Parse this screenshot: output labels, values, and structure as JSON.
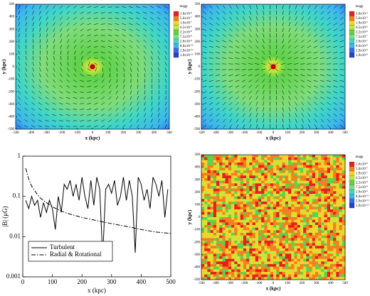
{
  "chart_data": [
    {
      "type": "heatmap",
      "mode": "rotational",
      "title": "magp",
      "xlabel": "x (kpc)",
      "ylabel": "y (kpc)",
      "xlim": [
        -500,
        500
      ],
      "ylim": [
        -500,
        500
      ],
      "xticks": [
        -500,
        -400,
        -300,
        -200,
        -100,
        0,
        100,
        200,
        300,
        400,
        500
      ],
      "yticks": [
        -500,
        -400,
        -300,
        -200,
        -100,
        0,
        100,
        200,
        300,
        400,
        500
      ],
      "colorbar_colors": [
        "#e8201a",
        "#f57f1f",
        "#f5d32a",
        "#c5e83c",
        "#5fd24a",
        "#7ddf7a",
        "#3fd6c8",
        "#3cb6ee",
        "#2f6fe6",
        "#2a3fc8"
      ],
      "colorbar_labels": [
        {
          "base": "1.6x10",
          "exp": "-6"
        },
        {
          "base": "5.6x10",
          "exp": "-7"
        },
        {
          "base": "1.9x10",
          "exp": "-7"
        },
        {
          "base": "6.5x10",
          "exp": "-8"
        },
        {
          "base": "2.2x10",
          "exp": "-8"
        },
        {
          "base": "7.5x10",
          "exp": "-9"
        },
        {
          "base": "2.6x10",
          "exp": "-9"
        },
        {
          "base": "8.6x10",
          "exp": "-10"
        },
        {
          "base": "2.9x10",
          "exp": "-10"
        },
        {
          "base": "1.0x10",
          "exp": "-10"
        }
      ]
    },
    {
      "type": "heatmap",
      "mode": "radial",
      "title": "magp",
      "xlabel": "x (kpc)",
      "ylabel": "y (kpc)",
      "xlim": [
        -500,
        500
      ],
      "ylim": [
        -500,
        500
      ],
      "xticks": [
        -500,
        -400,
        -300,
        -200,
        -100,
        0,
        100,
        200,
        300,
        400,
        500
      ],
      "yticks": [
        -500,
        -400,
        -300,
        -200,
        -100,
        0,
        100,
        200,
        300,
        400,
        500
      ],
      "colorbar_colors": [
        "#e8201a",
        "#f57f1f",
        "#f5d32a",
        "#c5e83c",
        "#5fd24a",
        "#7ddf7a",
        "#3fd6c8",
        "#3cb6ee",
        "#2f6fe6",
        "#2a3fc8"
      ],
      "colorbar_labels": [
        {
          "base": "1.6x10",
          "exp": "-4"
        },
        {
          "base": "5.6x10",
          "exp": "-5"
        },
        {
          "base": "1.9x10",
          "exp": "-5"
        },
        {
          "base": "6.5x10",
          "exp": "-6"
        },
        {
          "base": "2.2x10",
          "exp": "-6"
        },
        {
          "base": "7.5x10",
          "exp": "-7"
        },
        {
          "base": "2.6x10",
          "exp": "-7"
        },
        {
          "base": "8.6x10",
          "exp": "-8"
        },
        {
          "base": "2.9x10",
          "exp": "-8"
        },
        {
          "base": "1.0x10",
          "exp": "-8"
        }
      ]
    },
    {
      "type": "line",
      "xlabel": "x (kpc)",
      "ylabel": "|B| (μG)",
      "log_y": true,
      "legend": "lower left",
      "xlim": [
        0,
        500
      ],
      "ylim": [
        0.001,
        1
      ],
      "xticks": [
        0,
        100,
        200,
        300,
        400,
        500
      ],
      "yticks": [
        0.001,
        0.01,
        0.1,
        1
      ],
      "series": [
        {
          "name": "Turbulent",
          "color": "#000000",
          "linestyle": "solid",
          "x": [
            10,
            20,
            30,
            40,
            50,
            60,
            70,
            80,
            90,
            100,
            110,
            120,
            130,
            140,
            150,
            160,
            170,
            180,
            190,
            200,
            210,
            220,
            230,
            240,
            250,
            260,
            270,
            280,
            290,
            300,
            310,
            320,
            330,
            340,
            350,
            360,
            370,
            380,
            390,
            400,
            410,
            420,
            430,
            440,
            450,
            460,
            470,
            480,
            490
          ],
          "values": [
            0.08,
            0.05,
            0.1,
            0.06,
            0.08,
            0.03,
            0.07,
            0.04,
            0.08,
            0.05,
            0.015,
            0.1,
            0.04,
            0.2,
            0.15,
            0.25,
            0.1,
            0.2,
            0.08,
            0.3,
            0.1,
            0.05,
            0.25,
            0.06,
            0.3,
            0.15,
            0.003,
            0.15,
            0.2,
            0.12,
            0.25,
            0.06,
            0.1,
            0.3,
            0.08,
            0.25,
            0.1,
            0.004,
            0.3,
            0.2,
            0.08,
            0.15,
            0.05,
            0.3,
            0.2,
            0.1,
            0.25,
            0.03,
            0.15
          ]
        },
        {
          "name": "Radial & Rotational",
          "color": "#000000",
          "linestyle": "dashdot",
          "x": [
            10,
            20,
            30,
            40,
            50,
            60,
            80,
            100,
            125,
            150,
            200,
            250,
            300,
            350,
            400,
            450,
            500
          ],
          "values": [
            0.5,
            0.27,
            0.18,
            0.14,
            0.11,
            0.09,
            0.07,
            0.055,
            0.045,
            0.038,
            0.03,
            0.025,
            0.021,
            0.018,
            0.015,
            0.013,
            0.012
          ]
        }
      ]
    },
    {
      "type": "heatmap",
      "mode": "turbulent",
      "title": "magp",
      "xlabel": "x (kpc)",
      "ylabel": "y (kpc)",
      "xlim": [
        -500,
        500
      ],
      "ylim": [
        -500,
        500
      ],
      "xticks": [
        -500,
        -400,
        -300,
        -200,
        -100,
        0,
        100,
        200,
        300,
        400,
        500
      ],
      "yticks": [
        -500,
        -400,
        -300,
        -200,
        -100,
        0,
        100,
        200,
        300,
        400,
        500
      ],
      "colorbar_colors": [
        "#e8201a",
        "#f57f1f",
        "#f5d32a",
        "#c5e83c",
        "#5fd24a",
        "#7ddf7a",
        "#3fd6c8",
        "#3cb6ee",
        "#2f6fe6",
        "#2a3fc8"
      ],
      "colorbar_labels": [
        {
          "base": "1.6x10",
          "exp": "-6"
        },
        {
          "base": "5.6x10",
          "exp": "-7"
        },
        {
          "base": "1.9x10",
          "exp": "-7"
        },
        {
          "base": "6.5x10",
          "exp": "-8"
        },
        {
          "base": "2.2x10",
          "exp": "-8"
        },
        {
          "base": "7.5x10",
          "exp": "-9"
        },
        {
          "base": "2.6x10",
          "exp": "-9"
        },
        {
          "base": "8.6x10",
          "exp": "-10"
        },
        {
          "base": "2.9x10",
          "exp": "-10"
        },
        {
          "base": "1.0x10",
          "exp": "-10"
        }
      ]
    }
  ]
}
